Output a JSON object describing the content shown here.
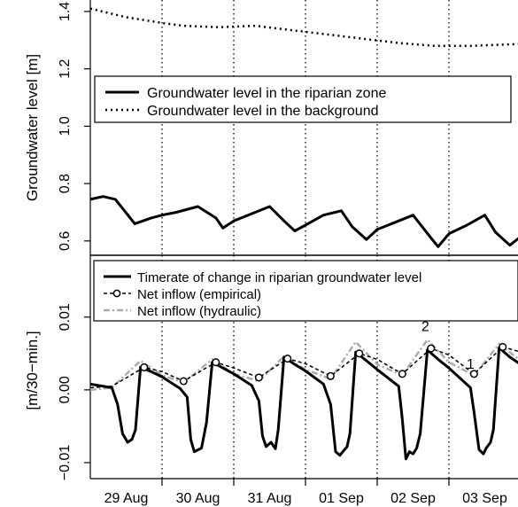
{
  "chart_data": [
    {
      "type": "line",
      "ylabel": "Groundwater level [m]",
      "ylim": [
        0.55,
        1.44
      ],
      "yticks": [
        "0.6",
        "0.8",
        "1.0",
        "1.2",
        "1.4"
      ],
      "yticks_values": [
        0.6,
        0.8,
        1.0,
        1.2,
        1.4
      ],
      "xlim": [
        0,
        6.6
      ],
      "grid": "vertical dotted at day boundaries",
      "legend": {
        "placement": "top-left"
      },
      "series": [
        {
          "name": "Groundwater level in the riparian zone",
          "style": "solid",
          "x": [
            0,
            0.18,
            0.35,
            0.62,
            0.85,
            1.0,
            1.2,
            1.5,
            1.75,
            1.85,
            2.0,
            2.25,
            2.5,
            2.7,
            2.85,
            3.0,
            3.25,
            3.5,
            3.65,
            3.85,
            4.0,
            4.25,
            4.5,
            4.75,
            4.85,
            5.0,
            5.25,
            5.5,
            5.65,
            5.85,
            6.0,
            6.25,
            6.5,
            6.6
          ],
          "values": [
            0.745,
            0.755,
            0.745,
            0.66,
            0.68,
            0.69,
            0.7,
            0.72,
            0.68,
            0.645,
            0.67,
            0.695,
            0.72,
            0.67,
            0.635,
            0.655,
            0.69,
            0.705,
            0.65,
            0.605,
            0.64,
            0.665,
            0.69,
            0.61,
            0.58,
            0.625,
            0.655,
            0.69,
            0.63,
            0.585,
            0.615,
            0.64,
            0.655,
            0.62
          ]
        },
        {
          "name": "Groundwater level in the background",
          "style": "dotted",
          "x": [
            0,
            0.5,
            1.0,
            1.3,
            1.8,
            2.3,
            2.8,
            3.3,
            3.8,
            4.3,
            4.8,
            5.3,
            5.8,
            6.3,
            6.6
          ],
          "values": [
            1.41,
            1.38,
            1.36,
            1.35,
            1.345,
            1.35,
            1.335,
            1.32,
            1.305,
            1.29,
            1.28,
            1.28,
            1.285,
            1.29,
            1.29
          ]
        }
      ]
    },
    {
      "type": "line",
      "ylabel": "[m/30−min.]",
      "ylim": [
        -0.0122,
        0.0185
      ],
      "yticks": [
        "−0.01",
        "0.00",
        "0.01"
      ],
      "yticks_values": [
        -0.01,
        0.0,
        0.01
      ],
      "xlim": [
        0,
        6.6
      ],
      "categories": [
        "29 Aug",
        "30 Aug",
        "31 Aug",
        "01 Sep",
        "02 Sep",
        "03 Sep"
      ],
      "categories_x": [
        0.5,
        1.5,
        2.5,
        3.5,
        4.5,
        5.5
      ],
      "grid": "vertical dotted at day boundaries",
      "legend": {
        "placement": "top-left"
      },
      "annotations": [
        {
          "text": "2",
          "x": 4.67,
          "y": 0.0081
        },
        {
          "text": "1",
          "x": 5.3,
          "y": 0.0029
        }
      ],
      "series": [
        {
          "name": "Timerate of change in riparian groundwater level",
          "style": "solid",
          "x": [
            0,
            0.3,
            0.38,
            0.45,
            0.52,
            0.58,
            0.63,
            0.7,
            0.85,
            1.0,
            1.25,
            1.35,
            1.4,
            1.45,
            1.55,
            1.62,
            1.7,
            1.85,
            2.0,
            2.25,
            2.35,
            2.4,
            2.45,
            2.52,
            2.58,
            2.62,
            2.7,
            2.85,
            3.0,
            3.25,
            3.35,
            3.42,
            3.48,
            3.52,
            3.58,
            3.62,
            3.7,
            3.85,
            4.0,
            4.3,
            4.35,
            4.4,
            4.45,
            4.5,
            4.55,
            4.6,
            4.7,
            4.85,
            5.0,
            5.3,
            5.35,
            5.42,
            5.48,
            5.52,
            5.58,
            5.62,
            5.7,
            5.85,
            6.0,
            6.3,
            6.35,
            6.42,
            6.5,
            6.6
          ],
          "values": [
            0.0008,
            0.0003,
            -0.002,
            -0.006,
            -0.0072,
            -0.0068,
            -0.0055,
            0.0031,
            0.0025,
            0.0018,
            0.0002,
            -0.001,
            -0.0068,
            -0.0085,
            -0.008,
            -0.0045,
            0.0038,
            0.003,
            0.0022,
            0.0006,
            -0.0015,
            -0.0063,
            -0.0078,
            -0.0072,
            -0.0081,
            -0.0055,
            0.0045,
            0.0035,
            0.0026,
            0.0008,
            -0.002,
            -0.0085,
            -0.009,
            -0.0085,
            -0.0078,
            -0.006,
            0.0052,
            0.004,
            0.0028,
            0.0005,
            -0.004,
            -0.0095,
            -0.0085,
            -0.0088,
            -0.008,
            -0.006,
            0.0055,
            0.0042,
            0.003,
            0.0003,
            -0.003,
            -0.0082,
            -0.0088,
            -0.008,
            -0.0072,
            -0.0055,
            0.0058,
            0.0045,
            0.0035,
            0.0008,
            -0.004,
            -0.0082,
            -0.0086,
            -0.004
          ]
        },
        {
          "name": "Net inflow (empirical)",
          "style": "dashed-circles",
          "x": [
            0,
            0.3,
            0.75,
            1.0,
            1.3,
            1.75,
            2.0,
            2.35,
            2.75,
            3.0,
            3.35,
            3.75,
            4.0,
            4.35,
            4.75,
            5.0,
            5.35,
            5.75,
            6.0,
            6.3,
            6.55,
            6.6
          ],
          "values": [
            0.0003,
            0.0005,
            0.0031,
            0.0025,
            0.0012,
            0.0038,
            0.003,
            0.0017,
            0.0043,
            0.0036,
            0.0019,
            0.005,
            0.0042,
            0.0022,
            0.0057,
            0.0048,
            0.0022,
            0.0059,
            0.0052,
            0.0024,
            0.0056,
            0.0052
          ]
        },
        {
          "name": "Net inflow (hydraulic)",
          "style": "dashdot-gray",
          "x": [
            0,
            0.3,
            0.7,
            1.0,
            1.3,
            1.7,
            2.0,
            2.35,
            2.7,
            3.0,
            3.35,
            3.7,
            4.0,
            4.35,
            4.7,
            5.0,
            5.35,
            5.7,
            6.0,
            6.3,
            6.55,
            6.6
          ],
          "values": [
            0.0,
            0.0003,
            0.004,
            0.002,
            0.001,
            0.0042,
            0.0022,
            0.0012,
            0.0046,
            0.0028,
            0.0015,
            0.0066,
            0.0035,
            0.002,
            0.0069,
            0.0038,
            0.002,
            0.0063,
            0.004,
            0.0018,
            0.006,
            0.0055
          ]
        }
      ]
    }
  ]
}
